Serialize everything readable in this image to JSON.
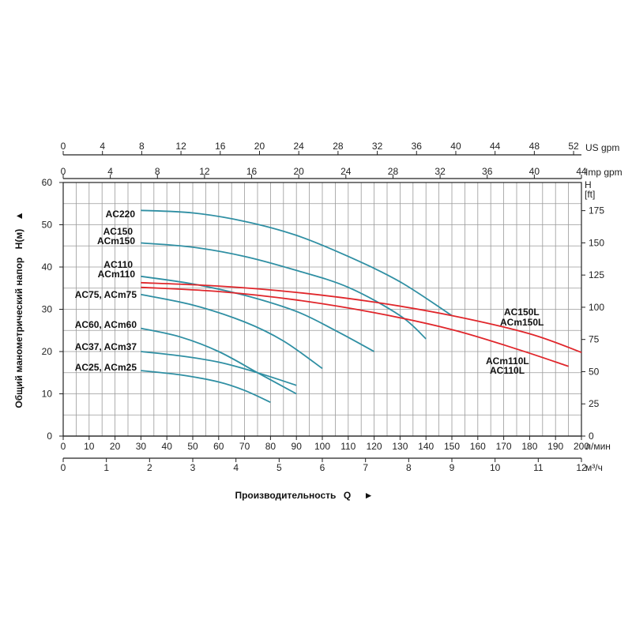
{
  "chart_data": {
    "type": "line",
    "ylabel": "Общий манометрический напор",
    "ylabel_symbol": "H(м)",
    "ylabel_arrow": "▲",
    "xlabel": "Производительность",
    "xlabel_symbol": "Q",
    "xlabel_arrow": "►",
    "x_lpm": {
      "unit": "л/мин",
      "lim": [
        0,
        200
      ],
      "ticks": [
        "0",
        "10",
        "20",
        "30",
        "40",
        "50",
        "60",
        "70",
        "80",
        "90",
        "100",
        "110",
        "120",
        "130",
        "140",
        "150",
        "160",
        "170",
        "180",
        "190",
        "200"
      ]
    },
    "x_m3h": {
      "unit": "м³/ч",
      "lim": [
        0,
        12
      ],
      "ticks": [
        "0",
        "1",
        "2",
        "3",
        "4",
        "5",
        "6",
        "7",
        "8",
        "9",
        "10",
        "11",
        "12"
      ]
    },
    "x_usgpm": {
      "unit": "US gpm",
      "lim": [
        0,
        52.8
      ],
      "ticks": [
        "0",
        "4",
        "8",
        "12",
        "16",
        "20",
        "24",
        "28",
        "32",
        "36",
        "40",
        "44",
        "48",
        "52"
      ]
    },
    "x_impgpm": {
      "unit": "Imp gpm",
      "lim": [
        0,
        44
      ],
      "ticks": [
        "0",
        "4",
        "8",
        "12",
        "16",
        "20",
        "24",
        "28",
        "32",
        "36",
        "40",
        "44"
      ]
    },
    "y_m": {
      "unit": "",
      "lim": [
        0,
        60
      ],
      "ticks": [
        "0",
        "10",
        "20",
        "30",
        "40",
        "50",
        "60"
      ]
    },
    "y_ft": {
      "unit_top": "H",
      "unit_bottom": "[ft]",
      "lim": [
        0,
        196.85
      ],
      "ticks": [
        "0",
        "25",
        "50",
        "75",
        "100",
        "125",
        "150",
        "175"
      ]
    },
    "series": [
      {
        "name": "AC220",
        "color": "#2f8fa3",
        "x": [
          30,
          50,
          70,
          90,
          110,
          130,
          150
        ],
        "y": [
          53.4,
          52.8,
          50.8,
          47.5,
          42.5,
          36.5,
          28.5
        ]
      },
      {
        "name": "AC150 ACm150",
        "color": "#2f8fa3",
        "x": [
          30,
          50,
          70,
          90,
          110,
          130,
          140
        ],
        "y": [
          45.7,
          44.7,
          42.5,
          39.2,
          35.2,
          28.5,
          23.0
        ]
      },
      {
        "name": "AC110 ACm110",
        "color": "#2f8fa3",
        "x": [
          30,
          50,
          70,
          90,
          105,
          120
        ],
        "y": [
          37.8,
          36.0,
          33.3,
          29.5,
          25.0,
          20.0
        ]
      },
      {
        "name": "AC75, ACm75",
        "color": "#2f8fa3",
        "x": [
          30,
          50,
          70,
          85,
          100
        ],
        "y": [
          33.5,
          31.0,
          27.0,
          22.5,
          16.0
        ]
      },
      {
        "name": "AC60, ACm60",
        "color": "#2f8fa3",
        "x": [
          30,
          45,
          60,
          75,
          90
        ],
        "y": [
          25.5,
          23.5,
          20.0,
          15.0,
          10.0
        ]
      },
      {
        "name": "AC37, ACm37",
        "color": "#2f8fa3",
        "x": [
          30,
          45,
          60,
          75,
          90
        ],
        "y": [
          20.0,
          19.0,
          17.5,
          15.0,
          12.0
        ]
      },
      {
        "name": "AC25, ACm25",
        "color": "#2f8fa3",
        "x": [
          30,
          45,
          60,
          70,
          80
        ],
        "y": [
          15.5,
          14.5,
          12.8,
          10.8,
          8.0
        ]
      },
      {
        "name": "AC150L ACm150L",
        "color": "#e0262b",
        "x": [
          30,
          60,
          90,
          120,
          150,
          180,
          200
        ],
        "y": [
          36.3,
          35.5,
          34.0,
          31.7,
          28.5,
          24.2,
          19.8
        ]
      },
      {
        "name": "ACm110L AC110L",
        "color": "#e0262b",
        "x": [
          30,
          60,
          90,
          120,
          150,
          175,
          195
        ],
        "y": [
          35.2,
          34.2,
          32.2,
          29.2,
          25.2,
          20.6,
          16.5
        ]
      }
    ],
    "labels": {
      "ac220": "AC220",
      "ac150": "AC150",
      "acm150": "ACm150",
      "ac110": "AC110",
      "acm110": "ACm110",
      "ac75": "AC75, ACm75",
      "ac60": "AC60, ACm60",
      "ac37": "AC37, ACm37",
      "ac25": "AC25, ACm25",
      "ac150l": "AC150L",
      "acm150l": "ACm150L",
      "acm110l": "ACm110L",
      "ac110l": "AC110L"
    },
    "grid": true,
    "legend": "inline-labels"
  }
}
